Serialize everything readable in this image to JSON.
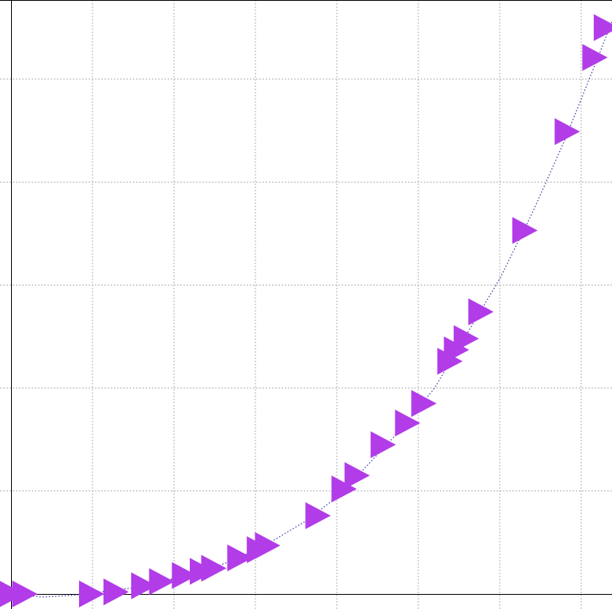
{
  "chart_data": {
    "type": "scatter",
    "title": "",
    "xlabel": "",
    "ylabel": "",
    "xlim": [
      -0.05,
      3.7
    ],
    "ylim": [
      -0.05,
      5.75
    ],
    "x_gridlines": [
      0.5,
      1.0,
      1.5,
      2.0,
      2.5,
      3.0,
      3.5
    ],
    "y_gridlines": [
      1.0,
      2.0,
      3.0,
      4.0,
      5.0
    ],
    "grid": true,
    "legend": "none",
    "marker": "triangle-right",
    "marker_color": "#b23ce8",
    "line_color": "#3535a6",
    "line_style": "dotted",
    "series": [
      {
        "points": [
          {
            "x": 0.0,
            "y": 0.0
          },
          {
            "x": 0.08,
            "y": 0.0
          },
          {
            "x": 0.49,
            "y": 0.0
          },
          {
            "x": 0.64,
            "y": 0.02
          },
          {
            "x": 0.81,
            "y": 0.08
          },
          {
            "x": 0.92,
            "y": 0.12
          },
          {
            "x": 1.06,
            "y": 0.18
          },
          {
            "x": 1.17,
            "y": 0.22
          },
          {
            "x": 1.24,
            "y": 0.25
          },
          {
            "x": 1.4,
            "y": 0.35
          },
          {
            "x": 1.52,
            "y": 0.43
          },
          {
            "x": 1.57,
            "y": 0.47
          },
          {
            "x": 1.88,
            "y": 0.76
          },
          {
            "x": 2.04,
            "y": 1.02
          },
          {
            "x": 2.12,
            "y": 1.15
          },
          {
            "x": 2.28,
            "y": 1.45
          },
          {
            "x": 2.43,
            "y": 1.66
          },
          {
            "x": 2.53,
            "y": 1.85
          },
          {
            "x": 2.69,
            "y": 2.26
          },
          {
            "x": 2.73,
            "y": 2.37
          },
          {
            "x": 2.79,
            "y": 2.48
          },
          {
            "x": 2.88,
            "y": 2.74
          },
          {
            "x": 3.15,
            "y": 3.53
          },
          {
            "x": 3.41,
            "y": 4.49
          },
          {
            "x": 3.58,
            "y": 5.21
          },
          {
            "x": 3.65,
            "y": 5.5
          }
        ],
        "curve_x": [
          0.0,
          0.2,
          0.4,
          0.6,
          0.8,
          1.0,
          1.2,
          1.4,
          1.6,
          1.8,
          2.0,
          2.2,
          2.4,
          2.6,
          2.8,
          3.0,
          3.2,
          3.4,
          3.6,
          3.7
        ],
        "curve_y": [
          0.0,
          -0.03,
          -0.01,
          0.03,
          0.07,
          0.15,
          0.23,
          0.35,
          0.51,
          0.7,
          0.94,
          1.27,
          1.61,
          2.0,
          2.53,
          3.06,
          3.7,
          4.41,
          5.2,
          5.6
        ]
      }
    ]
  }
}
